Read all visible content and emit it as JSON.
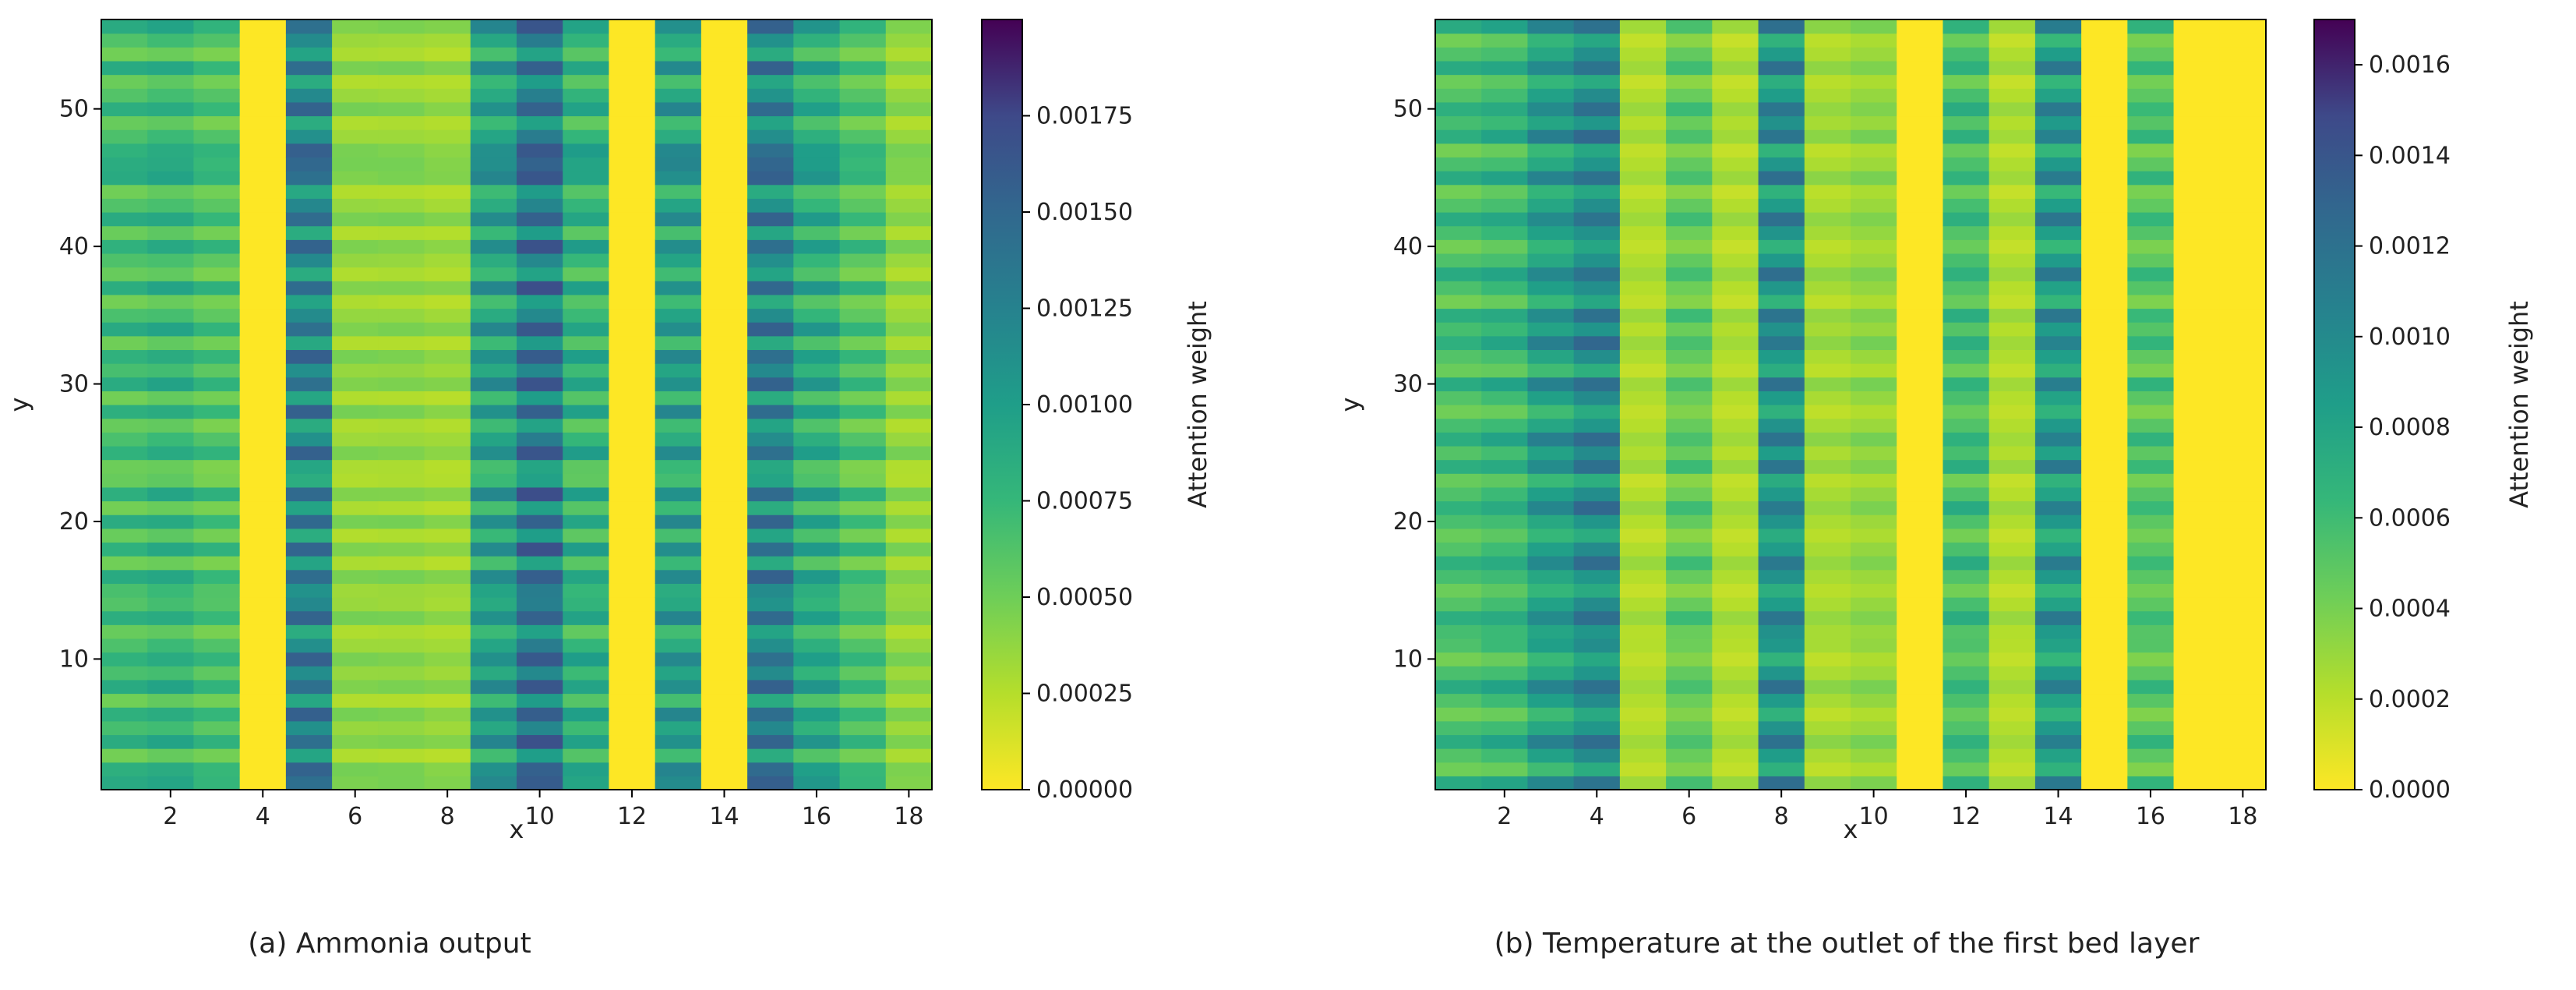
{
  "chart_data": [
    {
      "type": "heatmap",
      "caption": "(a) Ammonia output",
      "xlabel": "x",
      "ylabel": "y",
      "x_range": [
        0.5,
        18.5
      ],
      "y_range": [
        0.5,
        56.5
      ],
      "x_ticks": [
        2,
        4,
        6,
        8,
        10,
        12,
        14,
        16,
        18
      ],
      "y_ticks": [
        10,
        20,
        30,
        40,
        50
      ],
      "colorbar": {
        "label": "Attention weight",
        "range": [
          0,
          0.002
        ],
        "colormap": "viridis_r",
        "ticks": [
          0,
          0.00025,
          0.0005,
          0.00075,
          0.001,
          0.00125,
          0.0015,
          0.00175
        ],
        "tick_labels": [
          "0.00000",
          "0.00025",
          "0.00050",
          "0.00075",
          "0.00100",
          "0.00125",
          "0.00150",
          "0.00175"
        ]
      },
      "column_weights": [
        0.00065,
        0.0007,
        0.0006,
        0.0,
        0.00115,
        0.00035,
        0.00035,
        0.00032,
        0.0009,
        0.00125,
        0.00075,
        0.0,
        0.0009,
        0.0,
        0.00115,
        0.0008,
        0.0006,
        0.00035
      ],
      "zero_rows": [],
      "high_rows": [
        1,
        2,
        4,
        6,
        8,
        10,
        13,
        16,
        18,
        20,
        22,
        25,
        28,
        30,
        32,
        34,
        37,
        40,
        42,
        45,
        46,
        47,
        50,
        53,
        56
      ],
      "low_rows": [
        3,
        7,
        12,
        17,
        19,
        21,
        23,
        24,
        27,
        29,
        33,
        36,
        38,
        41,
        44,
        49,
        52,
        54
      ],
      "n_rows": 56
    },
    {
      "type": "heatmap",
      "caption": "(b) Temperature at the outlet of the first bed layer",
      "xlabel": "x",
      "ylabel": "y",
      "x_range": [
        0.5,
        18.5
      ],
      "y_range": [
        0.5,
        56.5
      ],
      "x_ticks": [
        2,
        4,
        6,
        8,
        10,
        12,
        14,
        16,
        18
      ],
      "y_ticks": [
        10,
        20,
        30,
        40,
        50
      ],
      "colorbar": {
        "label": "Attention weight",
        "range": [
          0,
          0.0017
        ],
        "colormap": "viridis_r",
        "ticks": [
          0,
          0.0002,
          0.0004,
          0.0006,
          0.0008,
          0.001,
          0.0012,
          0.0014,
          0.0016
        ],
        "tick_labels": [
          "0.0000",
          "0.0002",
          "0.0004",
          "0.0006",
          "0.0008",
          "0.0010",
          "0.0012",
          "0.0014",
          "0.0016"
        ]
      },
      "column_weights": [
        0.00055,
        0.0006,
        0.0008,
        0.00095,
        0.00022,
        0.00045,
        0.00022,
        0.0009,
        0.00025,
        0.0003,
        0.0,
        0.00055,
        0.00022,
        0.00085,
        0.0,
        0.0005,
        0.0,
        0.0
      ],
      "zero_rows": [],
      "high_rows": [
        1,
        4,
        8,
        13,
        17,
        21,
        24,
        26,
        30,
        33,
        35,
        38,
        42,
        45,
        48,
        50,
        53,
        56
      ],
      "low_rows": [
        2,
        6,
        10,
        15,
        19,
        23,
        28,
        31,
        36,
        40,
        44,
        47,
        52,
        55
      ],
      "n_rows": 56
    }
  ]
}
